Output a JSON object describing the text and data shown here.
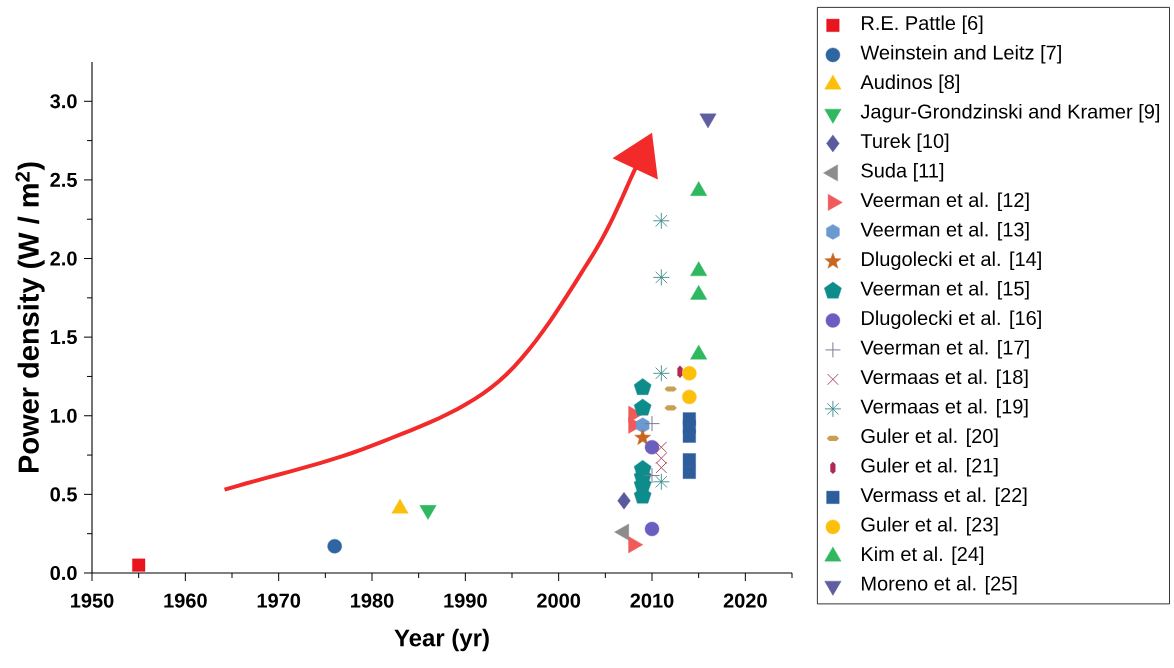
{
  "chart_data": {
    "type": "scatter",
    "xlabel": "Year (yr)",
    "ylabel": "Power density (W / m$^{2}$)",
    "xlim": [
      1950,
      2025
    ],
    "ylim": [
      0,
      3.25
    ],
    "xticks": [
      1950,
      {
        "value": 1955,
        "label": null
      },
      1960,
      {
        "value": 1965,
        "label": null
      },
      1970,
      {
        "value": 1975,
        "label": null
      },
      1980,
      {
        "value": 1985,
        "label": null
      },
      1990,
      {
        "value": 1995,
        "label": null
      },
      2000,
      {
        "value": 2005,
        "label": null
      },
      2010,
      {
        "value": 2015,
        "label": null
      },
      2020,
      {
        "value": 2025,
        "label": null
      }
    ],
    "yticks": [
      {
        "value": 0,
        "label": "0.0"
      },
      {
        "value": 0.25,
        "label": null
      },
      {
        "value": 0.5,
        "label": "0.5"
      },
      {
        "value": 0.75,
        "label": null
      },
      {
        "value": 1,
        "label": "1.0"
      },
      {
        "value": 1.25,
        "label": null
      },
      {
        "value": 1.5,
        "label": "1.5"
      },
      {
        "value": 1.75,
        "label": null
      },
      {
        "value": 2,
        "label": "2.0"
      },
      {
        "value": 2.25,
        "label": null
      },
      {
        "value": 2.5,
        "label": "2.5"
      },
      {
        "value": 2.75,
        "label": null
      },
      {
        "value": 3,
        "label": "3.0"
      }
    ],
    "legend": "right",
    "series": [
      {
        "name": "R.E. Pattle [6]",
        "color": "#e8141e",
        "marker": "square",
        "x": [
          1955
        ],
        "values": [
          0.05
        ]
      },
      {
        "name": "Weinstein and Leitz [7]",
        "color": "#2f65a0",
        "marker": "circle",
        "x": [
          1976
        ],
        "values": [
          0.17
        ]
      },
      {
        "name": "Audinos [8]",
        "color": "#fcbf0a",
        "marker": "triangle",
        "x": [
          1983
        ],
        "values": [
          0.41
        ]
      },
      {
        "name": "Jagur-Grondzinski and Kramer [9]",
        "color": "#2fb860",
        "marker": "triangle-down",
        "x": [
          1986
        ],
        "values": [
          0.4
        ]
      },
      {
        "name": "Turek [10]",
        "color": "#5a5a9e",
        "marker": "diamond",
        "x": [
          2007
        ],
        "values": [
          0.46
        ]
      },
      {
        "name": "Suda [11]",
        "color": "#8c8c8c",
        "marker": "triangle-left",
        "x": [
          2007
        ],
        "values": [
          0.26
        ]
      },
      {
        "name": "Veerman et al. [12]",
        "color": "#f05a5a",
        "marker": "triangle-right",
        "x": [
          2008,
          2008,
          2008
        ],
        "values": [
          0.18,
          0.94,
          1.01
        ]
      },
      {
        "name": "Veerman et al. [13]",
        "color": "#6a9ad0",
        "x": [
          2009
        ],
        "values": [
          0.94
        ]
      },
      {
        "name": "Dlugolecki et al. [14]",
        "color": "#c8661e",
        "marker": "star",
        "x": [
          2009
        ],
        "values": [
          0.86
        ]
      },
      {
        "name": "Veerman et al. [15]",
        "color": "#0e8c8c",
        "x": [
          2009,
          2009,
          2009,
          2009,
          2009,
          2009
        ],
        "values": [
          1.18,
          1.05,
          0.66,
          0.61,
          0.56,
          0.49
        ]
      },
      {
        "name": "Dlugolecki et al. [16]",
        "color": "#6a5fc0",
        "marker": "circle",
        "x": [
          2010,
          2010
        ],
        "values": [
          0.8,
          0.28
        ]
      },
      {
        "name": "Veerman et al. [17]",
        "color": "#7a7a9a",
        "marker": "plus",
        "x": [
          2010,
          2010
        ],
        "values": [
          0.95,
          0.62
        ]
      },
      {
        "name": "Vermaas et al. [18]",
        "color": "#b04a5a",
        "marker": "cross",
        "x": [
          2011,
          2011,
          2011
        ],
        "values": [
          0.8,
          0.73,
          0.67
        ]
      },
      {
        "name": "Vermaas et al. [19]",
        "color": "#3a8a8a",
        "x": [
          2011,
          2011,
          2011,
          2011
        ],
        "values": [
          2.24,
          1.88,
          1.27,
          0.58
        ]
      },
      {
        "name": "Guler et al. [20]",
        "color": "#c8a050",
        "x": [
          2012,
          2012
        ],
        "values": [
          1.17,
          1.05
        ]
      },
      {
        "name": "Guler et al. [21]",
        "color": "#b02850",
        "x": [
          2013
        ],
        "values": [
          1.28
        ]
      },
      {
        "name": "Vermass et al. [22]",
        "color": "#2e5d9c",
        "marker": "square",
        "x": [
          2014,
          2014,
          2014,
          2014,
          2014
        ],
        "values": [
          0.98,
          0.93,
          0.87,
          0.72,
          0.64
        ]
      },
      {
        "name": "Guler et al. [23]",
        "color": "#fcbf0a",
        "marker": "circle",
        "x": [
          2014,
          2014
        ],
        "values": [
          1.27,
          1.12
        ]
      },
      {
        "name": "Kim et al. [24]",
        "color": "#2fb860",
        "marker": "triangle",
        "x": [
          2015,
          2015,
          2015,
          2015
        ],
        "values": [
          2.43,
          1.92,
          1.77,
          1.39
        ]
      },
      {
        "name": "Moreno et al. [25]",
        "color": "#5e5ea0",
        "marker": "triangle-down",
        "x": [
          2016
        ],
        "values": [
          2.89
        ]
      }
    ]
  }
}
